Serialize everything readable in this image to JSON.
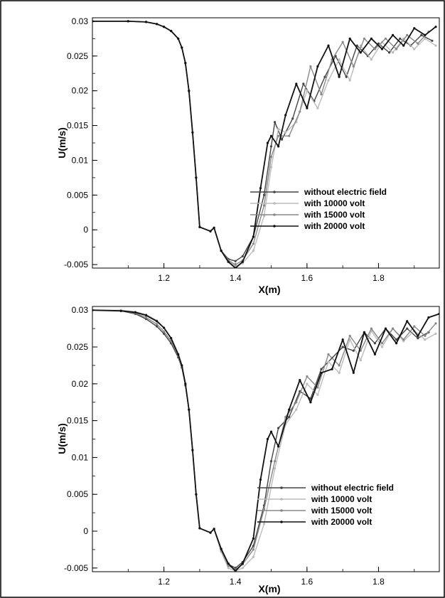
{
  "chart_data": [
    {
      "type": "line",
      "xlabel": "X(m)",
      "ylabel": "U(m/s)",
      "xlim": [
        1.0,
        1.97
      ],
      "ylim": [
        -0.0055,
        0.0305
      ],
      "x_ticks": [
        "1.2",
        "1.4",
        "1.6",
        "1.8"
      ],
      "x_tick_values": [
        1.2,
        1.4,
        1.6,
        1.8
      ],
      "y_ticks": [
        "0.03",
        "0.025",
        "0.02",
        "0.015",
        "0.01",
        "0.005",
        "0",
        "-0.005"
      ],
      "y_tick_values": [
        0.03,
        0.025,
        0.02,
        0.015,
        0.01,
        0.005,
        0,
        -0.005
      ],
      "legend_position": "right",
      "series": [
        {
          "name": "without electric field",
          "color": "#444444",
          "x": [
            1.0,
            1.1,
            1.15,
            1.18,
            1.2,
            1.22,
            1.24,
            1.25,
            1.26,
            1.27,
            1.28,
            1.29,
            1.3,
            1.33,
            1.34,
            1.36,
            1.38,
            1.4,
            1.42,
            1.45,
            1.48,
            1.5,
            1.51,
            1.53,
            1.56,
            1.59,
            1.62,
            1.65,
            1.68,
            1.71,
            1.74,
            1.77,
            1.8,
            1.83,
            1.86,
            1.89,
            1.92,
            1.95
          ],
          "y": [
            0.03,
            0.03,
            0.0299,
            0.0296,
            0.0292,
            0.0286,
            0.0275,
            0.0262,
            0.024,
            0.02,
            0.014,
            0.0075,
            0.0004,
            -0.0002,
            0.0003,
            -0.003,
            -0.0042,
            -0.0045,
            -0.0038,
            -0.001,
            0.005,
            0.012,
            0.0155,
            0.013,
            0.016,
            0.021,
            0.0185,
            0.022,
            0.025,
            0.022,
            0.0265,
            0.025,
            0.0268,
            0.0255,
            0.0275,
            0.0265,
            0.028,
            0.0272
          ]
        },
        {
          "name": "with 10000 volt",
          "color": "#bbbbbb",
          "x": [
            1.0,
            1.1,
            1.15,
            1.18,
            1.2,
            1.22,
            1.24,
            1.25,
            1.26,
            1.27,
            1.28,
            1.29,
            1.3,
            1.33,
            1.34,
            1.36,
            1.38,
            1.4,
            1.42,
            1.45,
            1.48,
            1.5,
            1.52,
            1.54,
            1.57,
            1.6,
            1.63,
            1.66,
            1.69,
            1.72,
            1.75,
            1.78,
            1.81,
            1.84,
            1.87,
            1.9,
            1.93,
            1.96
          ],
          "y": [
            0.03,
            0.03,
            0.0299,
            0.0296,
            0.0292,
            0.0286,
            0.0275,
            0.0262,
            0.024,
            0.02,
            0.014,
            0.0075,
            0.0004,
            -0.0002,
            0.0003,
            -0.003,
            -0.0045,
            -0.0052,
            -0.0048,
            -0.003,
            0.002,
            0.009,
            0.0145,
            0.014,
            0.0155,
            0.02,
            0.0175,
            0.0215,
            0.0245,
            0.0215,
            0.0265,
            0.0245,
            0.027,
            0.0255,
            0.0275,
            0.026,
            0.0275,
            0.0265
          ]
        },
        {
          "name": "with 15000 volt",
          "color": "#888888",
          "x": [
            1.0,
            1.1,
            1.15,
            1.18,
            1.2,
            1.22,
            1.24,
            1.25,
            1.26,
            1.27,
            1.28,
            1.29,
            1.3,
            1.33,
            1.34,
            1.36,
            1.38,
            1.4,
            1.42,
            1.45,
            1.48,
            1.5,
            1.52,
            1.55,
            1.58,
            1.61,
            1.64,
            1.67,
            1.7,
            1.73,
            1.76,
            1.79,
            1.82,
            1.85,
            1.88,
            1.91,
            1.94
          ],
          "y": [
            0.03,
            0.03,
            0.0299,
            0.0296,
            0.0292,
            0.0286,
            0.0275,
            0.0262,
            0.024,
            0.02,
            0.014,
            0.0075,
            0.0004,
            -0.0002,
            0.0003,
            -0.003,
            -0.0044,
            -0.005,
            -0.0044,
            -0.002,
            0.0035,
            0.0105,
            0.0135,
            0.0135,
            0.017,
            0.0235,
            0.0195,
            0.0245,
            0.027,
            0.0235,
            0.0275,
            0.026,
            0.0275,
            0.026,
            0.028,
            0.0268,
            0.0285
          ]
        },
        {
          "name": "with 20000 volt",
          "color": "#111111",
          "x": [
            1.0,
            1.1,
            1.15,
            1.18,
            1.2,
            1.22,
            1.24,
            1.25,
            1.26,
            1.27,
            1.28,
            1.29,
            1.3,
            1.33,
            1.34,
            1.36,
            1.38,
            1.4,
            1.42,
            1.45,
            1.47,
            1.49,
            1.5,
            1.52,
            1.54,
            1.57,
            1.6,
            1.63,
            1.66,
            1.69,
            1.72,
            1.75,
            1.78,
            1.81,
            1.84,
            1.87,
            1.9,
            1.93,
            1.96
          ],
          "y": [
            0.03,
            0.03,
            0.0299,
            0.0296,
            0.0292,
            0.0286,
            0.0275,
            0.0262,
            0.024,
            0.02,
            0.014,
            0.0075,
            0.0004,
            -0.0002,
            0.0003,
            -0.003,
            -0.0046,
            -0.0055,
            -0.0046,
            -0.001,
            0.006,
            0.0125,
            0.0135,
            0.012,
            0.0165,
            0.021,
            0.0175,
            0.0235,
            0.0265,
            0.022,
            0.0275,
            0.0255,
            0.0275,
            0.026,
            0.028,
            0.0265,
            0.029,
            0.028,
            0.0292
          ]
        }
      ]
    },
    {
      "type": "line",
      "xlabel": "X(m)",
      "ylabel": "U(m/s)",
      "xlim": [
        1.0,
        1.97
      ],
      "ylim": [
        -0.0055,
        0.0305
      ],
      "x_ticks": [
        "1.2",
        "1.4",
        "1.6",
        "1.8"
      ],
      "x_tick_values": [
        1.2,
        1.4,
        1.6,
        1.8
      ],
      "y_ticks": [
        "0.03",
        "0.025",
        "0.02",
        "0.015",
        "0.01",
        "0.005",
        "0",
        "-0.005"
      ],
      "y_tick_values": [
        0.03,
        0.025,
        0.02,
        0.015,
        0.01,
        0.005,
        0,
        -0.005
      ],
      "legend_position": "right",
      "series": [
        {
          "name": "without electric field",
          "color": "#444444",
          "x": [
            1.0,
            1.08,
            1.12,
            1.15,
            1.18,
            1.2,
            1.22,
            1.24,
            1.25,
            1.26,
            1.27,
            1.28,
            1.29,
            1.3,
            1.33,
            1.34,
            1.36,
            1.38,
            1.4,
            1.42,
            1.45,
            1.48,
            1.5,
            1.52,
            1.55,
            1.58,
            1.61,
            1.64,
            1.67,
            1.7,
            1.73,
            1.76,
            1.79,
            1.82,
            1.85,
            1.88,
            1.91,
            1.94
          ],
          "y": [
            0.03,
            0.0299,
            0.0295,
            0.0288,
            0.0278,
            0.0268,
            0.0255,
            0.0236,
            0.0222,
            0.0198,
            0.0165,
            0.011,
            0.005,
            0.0004,
            -0.0002,
            0.0003,
            -0.0025,
            -0.0045,
            -0.005,
            -0.0042,
            -0.002,
            0.0035,
            0.0095,
            0.014,
            0.0155,
            0.019,
            0.018,
            0.022,
            0.0235,
            0.025,
            0.0245,
            0.027,
            0.0255,
            0.0275,
            0.026,
            0.0275,
            0.0262,
            0.027
          ]
        },
        {
          "name": "with 10000 volt",
          "color": "#bbbbbb",
          "x": [
            1.0,
            1.08,
            1.12,
            1.15,
            1.18,
            1.2,
            1.22,
            1.24,
            1.25,
            1.26,
            1.27,
            1.28,
            1.29,
            1.3,
            1.33,
            1.34,
            1.36,
            1.38,
            1.4,
            1.42,
            1.45,
            1.48,
            1.51,
            1.54,
            1.57,
            1.6,
            1.63,
            1.66,
            1.69,
            1.72,
            1.75,
            1.78,
            1.81,
            1.84,
            1.87,
            1.9,
            1.93,
            1.96
          ],
          "y": [
            0.03,
            0.03,
            0.0298,
            0.0294,
            0.0286,
            0.0276,
            0.0262,
            0.024,
            0.0225,
            0.02,
            0.0165,
            0.011,
            0.005,
            0.0004,
            -0.0002,
            0.0003,
            -0.0028,
            -0.005,
            -0.0054,
            -0.005,
            -0.0035,
            0.001,
            0.0085,
            0.0145,
            0.0165,
            0.02,
            0.0185,
            0.023,
            0.0215,
            0.026,
            0.0232,
            0.0272,
            0.025,
            0.0275,
            0.0258,
            0.0272,
            0.026,
            0.0268
          ]
        },
        {
          "name": "with 15000 volt",
          "color": "#888888",
          "x": [
            1.0,
            1.08,
            1.12,
            1.15,
            1.18,
            1.2,
            1.22,
            1.24,
            1.25,
            1.26,
            1.27,
            1.28,
            1.29,
            1.3,
            1.33,
            1.34,
            1.36,
            1.38,
            1.4,
            1.42,
            1.45,
            1.48,
            1.51,
            1.54,
            1.57,
            1.6,
            1.63,
            1.66,
            1.69,
            1.72,
            1.75,
            1.78,
            1.81,
            1.84,
            1.87,
            1.9,
            1.93,
            1.96
          ],
          "y": [
            0.03,
            0.0299,
            0.0296,
            0.029,
            0.0281,
            0.0271,
            0.0258,
            0.0238,
            0.0223,
            0.0199,
            0.0165,
            0.011,
            0.005,
            0.0004,
            -0.0002,
            0.0003,
            -0.0026,
            -0.0047,
            -0.0052,
            -0.0045,
            -0.0025,
            0.003,
            0.0095,
            0.0155,
            0.0175,
            0.021,
            0.0195,
            0.024,
            0.0225,
            0.0265,
            0.0245,
            0.0275,
            0.0255,
            0.0275,
            0.026,
            0.0278,
            0.0265,
            0.0282
          ]
        },
        {
          "name": "with 20000 volt",
          "color": "#111111",
          "x": [
            1.0,
            1.08,
            1.12,
            1.15,
            1.18,
            1.2,
            1.22,
            1.24,
            1.25,
            1.26,
            1.27,
            1.28,
            1.29,
            1.3,
            1.33,
            1.34,
            1.36,
            1.38,
            1.4,
            1.42,
            1.45,
            1.47,
            1.49,
            1.5,
            1.52,
            1.55,
            1.58,
            1.61,
            1.64,
            1.67,
            1.7,
            1.73,
            1.76,
            1.79,
            1.82,
            1.85,
            1.88,
            1.91,
            1.94,
            1.97
          ],
          "y": [
            0.03,
            0.0299,
            0.0297,
            0.0293,
            0.0285,
            0.0276,
            0.0262,
            0.024,
            0.0225,
            0.02,
            0.0165,
            0.011,
            0.005,
            0.0004,
            -0.0002,
            0.0003,
            -0.0024,
            -0.0044,
            -0.0054,
            -0.0044,
            -0.001,
            0.007,
            0.0125,
            0.0135,
            0.0115,
            0.0165,
            0.0205,
            0.0175,
            0.0215,
            0.022,
            0.026,
            0.0215,
            0.027,
            0.024,
            0.0275,
            0.0255,
            0.0285,
            0.0265,
            0.029,
            0.0295
          ]
        }
      ]
    }
  ]
}
